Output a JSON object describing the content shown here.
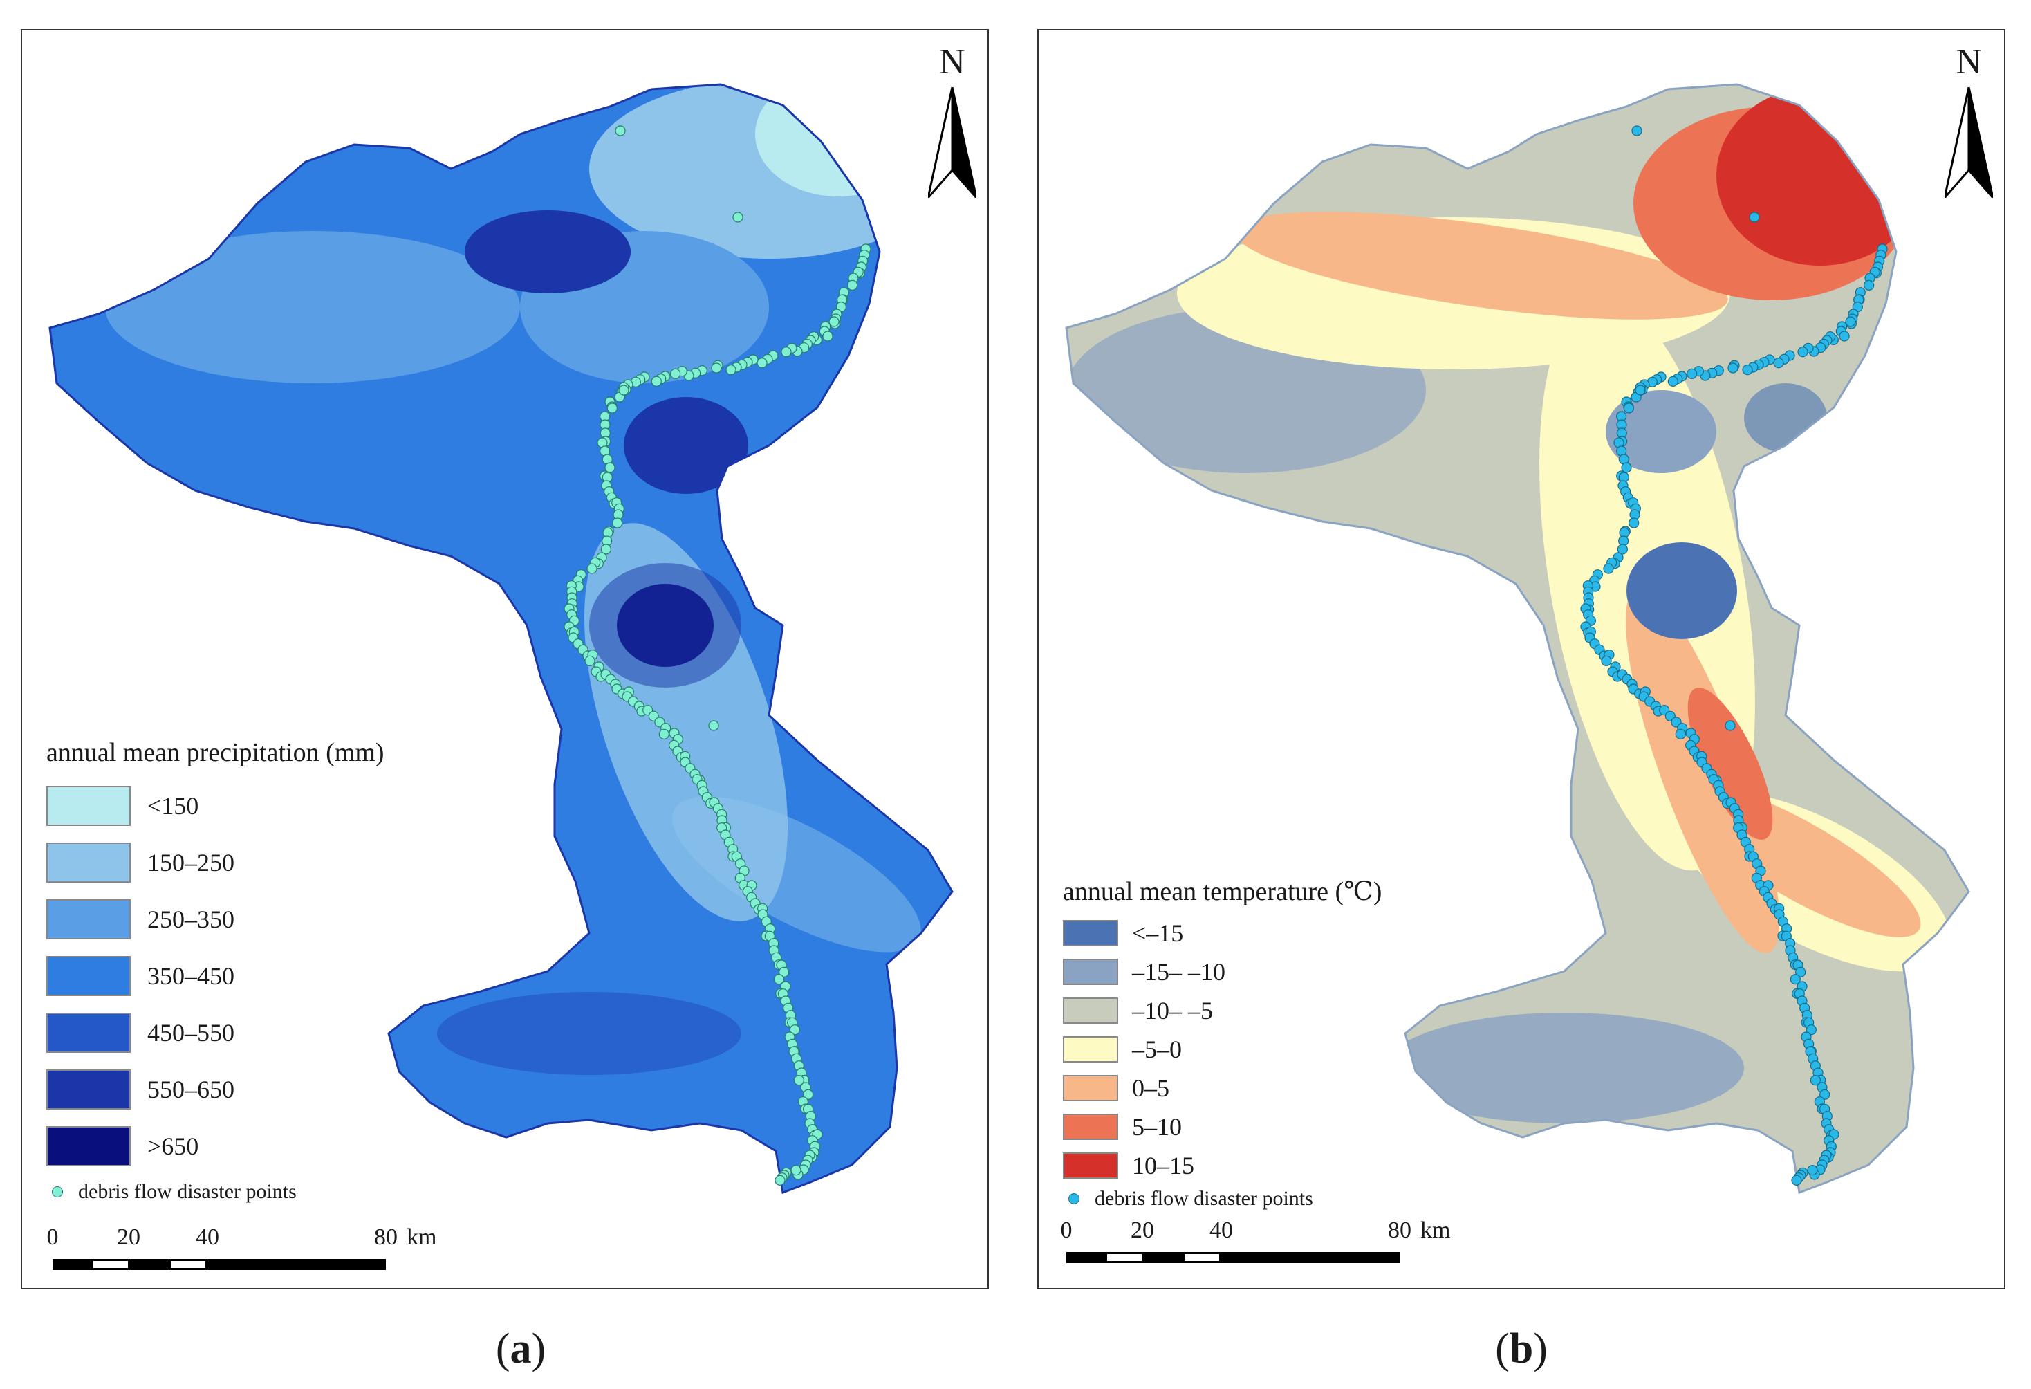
{
  "panels": {
    "a": {
      "north_label": "N",
      "legend_title": "annual mean precipitation (mm)",
      "classes": [
        {
          "label": "<150",
          "color": "#b8ebf0"
        },
        {
          "label": "150–250",
          "color": "#8fc4ea"
        },
        {
          "label": "250–350",
          "color": "#5a9fe6"
        },
        {
          "label": "350–450",
          "color": "#2f7de0"
        },
        {
          "label": "450–550",
          "color": "#2457c8"
        },
        {
          "label": "550–650",
          "color": "#1a36a8"
        },
        {
          "label": ">650",
          "color": "#0a0f7e"
        }
      ],
      "points_label": "debris flow disaster points",
      "points_color": "#7ff0d2",
      "scale": {
        "ticks": [
          "0",
          "20",
          "40",
          "80"
        ],
        "unit": "km"
      },
      "caption_open": "(",
      "caption_letter": "a",
      "caption_close": ")"
    },
    "b": {
      "north_label": "N",
      "legend_title": "annual mean temperature (℃)",
      "classes": [
        {
          "label": "<–15",
          "color": "#4b73b3"
        },
        {
          "label": "–15– –10",
          "color": "#8aa3c2"
        },
        {
          "label": "–10– –5",
          "color": "#c8ccbd"
        },
        {
          "label": "–5–0",
          "color": "#fdfac4"
        },
        {
          "label": "0–5",
          "color": "#f7b789"
        },
        {
          "label": "5–10",
          "color": "#ec7455"
        },
        {
          "label": "10–15",
          "color": "#d6302a"
        }
      ],
      "points_label": "debris flow disaster points",
      "points_color": "#2ab8e8",
      "scale": {
        "ticks": [
          "0",
          "20",
          "40",
          "80"
        ],
        "unit": "km"
      },
      "caption_open": "(",
      "caption_letter": "b",
      "caption_close": ")"
    }
  }
}
